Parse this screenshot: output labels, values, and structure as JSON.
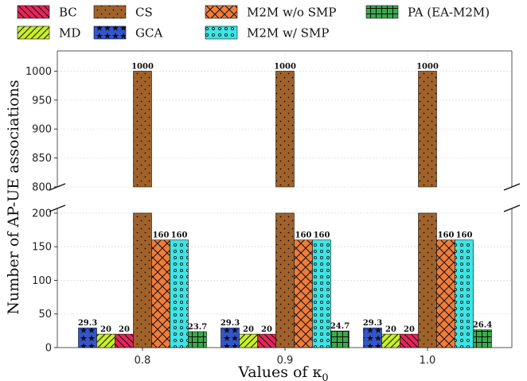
{
  "chart_data": {
    "type": "bar",
    "xlabel": "Values of κ",
    "xlabel_sub": "0",
    "ylabel": "Number of AP-UE associations",
    "categories": [
      "0.8",
      "0.9",
      "1.0"
    ],
    "y_axis_break": true,
    "lower_ylim": [
      0,
      200
    ],
    "upper_ylim": [
      800,
      1000
    ],
    "lower_yticks": [
      0,
      50,
      100,
      150,
      200
    ],
    "upper_yticks": [
      800,
      850,
      900,
      950,
      1000
    ],
    "grid": true,
    "legend_position": "top",
    "series": [
      {
        "name": "GCA",
        "values": [
          29.3,
          29.3,
          29.3
        ],
        "labels": [
          "29.3",
          "29.3",
          "29.3"
        ],
        "color": "#3355cc",
        "pattern": "stars"
      },
      {
        "name": "MD",
        "values": [
          20,
          20,
          20
        ],
        "labels": [
          "20",
          "20",
          "20"
        ],
        "color": "#c8ef2a",
        "pattern": "slash"
      },
      {
        "name": "BC",
        "values": [
          20,
          20,
          20
        ],
        "labels": [
          "20",
          "20",
          "20"
        ],
        "color": "#e8245a",
        "pattern": "backslash"
      },
      {
        "name": "CS",
        "values": [
          1000,
          1000,
          1000
        ],
        "labels": [
          "1000",
          "1000",
          "1000"
        ],
        "color": "#a0622a",
        "pattern": "dots"
      },
      {
        "name": "M2M w/o SMP",
        "values": [
          160,
          160,
          160
        ],
        "labels": [
          "160",
          "160",
          "160"
        ],
        "color": "#f07c3a",
        "pattern": "cross"
      },
      {
        "name": "M2M w/ SMP",
        "values": [
          160,
          160,
          160
        ],
        "labels": [
          "160",
          "160",
          "160"
        ],
        "color": "#3fe4e4",
        "pattern": "circles"
      },
      {
        "name": "PA (EA-M2M)",
        "values": [
          23.7,
          24.7,
          26.4
        ],
        "labels": [
          "23.7",
          "24.7",
          "26.4"
        ],
        "color": "#3aaa4a",
        "pattern": "grid"
      }
    ],
    "legend_order": [
      "BC",
      "CS",
      "M2M w/o SMP",
      "PA (EA-M2M)",
      "MD",
      "GCA",
      "M2M w/ SMP"
    ]
  }
}
